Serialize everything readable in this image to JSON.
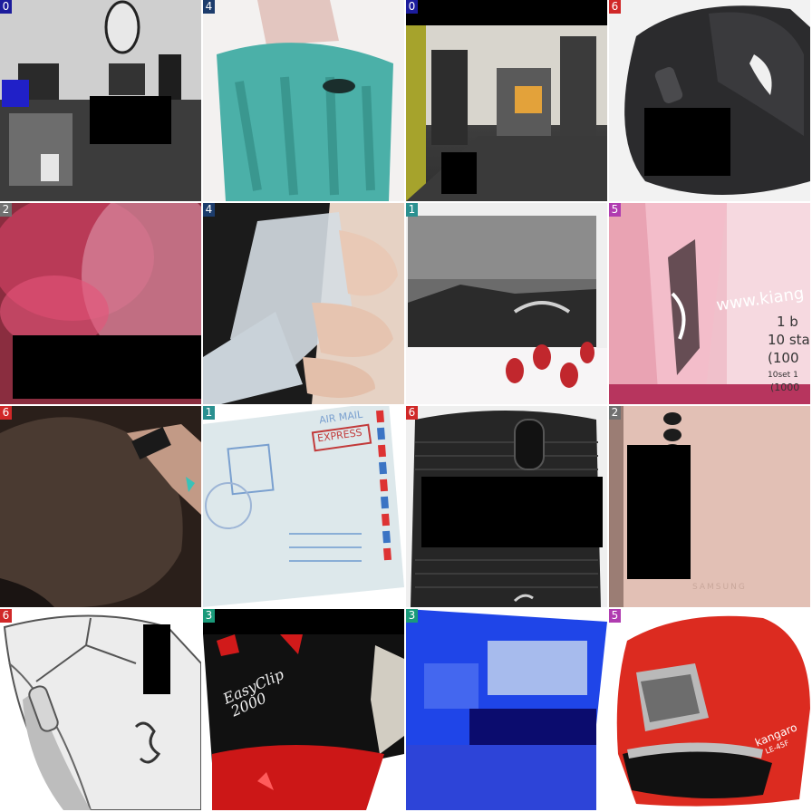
{
  "grid": {
    "background": "#ffffff",
    "tiles": [
      {
        "label": "0",
        "badge_color": "#1c1c9c",
        "subject": "office-interior"
      },
      {
        "label": "4",
        "badge_color": "#1c3c6c",
        "subject": "teal-bottle-closeup"
      },
      {
        "label": "0",
        "badge_color": "#1c1c9c",
        "subject": "office-interior"
      },
      {
        "label": "6",
        "badge_color": "#d02828",
        "subject": "black-computer-mouse"
      },
      {
        "label": "2",
        "badge_color": "#707070",
        "subject": "pink-blur"
      },
      {
        "label": "4",
        "badge_color": "#1c3c6c",
        "subject": "clear-bottle-in-hand"
      },
      {
        "label": "1",
        "badge_color": "#2a9090",
        "subject": "postcard-photo"
      },
      {
        "label": "5",
        "badge_color": "#b03cb0",
        "subject": "pink-stapler-box"
      },
      {
        "label": "6",
        "badge_color": "#d02828",
        "subject": "brown-gaming-mouse"
      },
      {
        "label": "1",
        "badge_color": "#2a9090",
        "subject": "air-mail-envelope"
      },
      {
        "label": "6",
        "badge_color": "#d02828",
        "subject": "black-wireless-mouse"
      },
      {
        "label": "2",
        "badge_color": "#707070",
        "subject": "samsung-phone-back"
      },
      {
        "label": "6",
        "badge_color": "#d02828",
        "subject": "white-razer-mouse"
      },
      {
        "label": "3",
        "badge_color": "#1a9a7a",
        "subject": "easyclip-stapler"
      },
      {
        "label": "3",
        "badge_color": "#1a9a7a",
        "subject": "blue-blur"
      },
      {
        "label": "5",
        "badge_color": "#b03cb0",
        "subject": "red-stapler"
      }
    ]
  },
  "visible_text": {
    "tile8_text_a": "www.kiang",
    "tile8_text_b": "1 b",
    "tile8_text_c": "10 sta",
    "tile8_text_d": "(100",
    "tile8_text_e": "10set 1",
    "tile8_text_f": "(1000",
    "tile10_stamp": "EXPRESS",
    "tile10_airmail": "AIR MAIL",
    "tile12_brand": "SAMSUNG",
    "tile14_brand": "EasyClip",
    "tile14_model": "2000",
    "tile16_brand": "kangaro",
    "tile16_model": "LE-45F"
  }
}
